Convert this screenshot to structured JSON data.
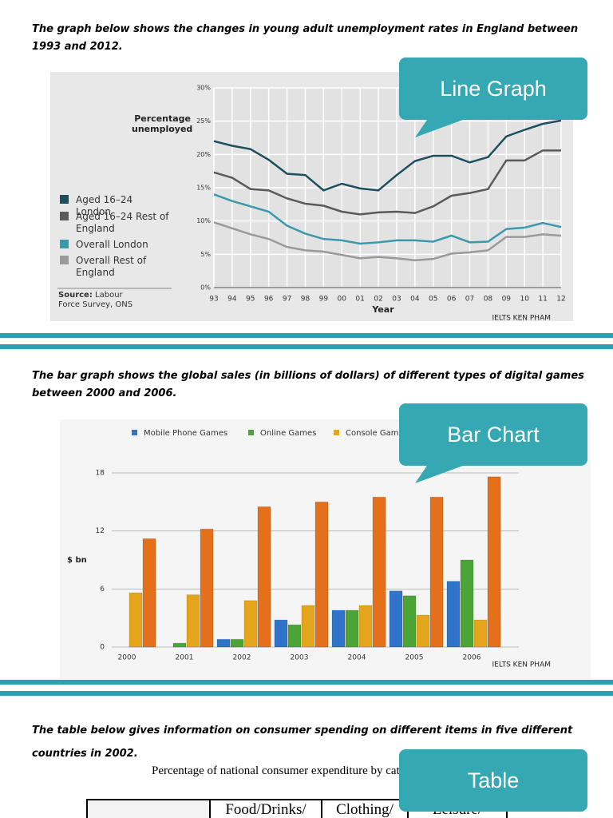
{
  "sections": [
    {
      "text": "The graph below shows the changes in young adult unemployment rates in England between 1993 and 2012."
    },
    {
      "text": "The bar graph shows the global sales (in billions of dollars) of different types of digital games between 2000 and 2006."
    },
    {
      "text": "The table below gives information on consumer spending on different items in five different countries in 2002."
    }
  ],
  "callouts": [
    "Line Graph",
    "Bar Chart",
    "Table"
  ],
  "chart_data": [
    {
      "type": "line",
      "y_label": "Percentage unemployed",
      "x_label": "Year",
      "categories": [
        "93",
        "94",
        "95",
        "96",
        "97",
        "98",
        "99",
        "00",
        "01",
        "02",
        "03",
        "04",
        "05",
        "06",
        "07",
        "08",
        "09",
        "10",
        "11",
        "12"
      ],
      "series": [
        {
          "name": "Aged 16–24 London",
          "color": "#1d4f5e",
          "values": [
            22,
            21.3,
            20.8,
            19.2,
            17.1,
            16.9,
            14.6,
            15.6,
            14.9,
            14.6,
            16.9,
            19,
            19.8,
            19.8,
            18.8,
            19.6,
            22.7,
            23.7,
            24.6,
            25.1
          ]
        },
        {
          "name": "Aged 16–24 Rest of England",
          "color": "#5a5a5a",
          "values": [
            17.3,
            16.5,
            14.8,
            14.6,
            13.4,
            12.6,
            12.3,
            11.4,
            11,
            11.3,
            11.4,
            11.2,
            12.2,
            13.8,
            14.2,
            14.8,
            19.1,
            19.1,
            20.6,
            20.6
          ]
        },
        {
          "name": "Overall London",
          "color": "#3b99ad",
          "values": [
            14,
            13,
            12.2,
            11.4,
            9.3,
            8.1,
            7.3,
            7.1,
            6.6,
            6.8,
            7.1,
            7.1,
            6.9,
            7.8,
            6.8,
            6.9,
            8.8,
            9,
            9.7,
            9.1
          ]
        },
        {
          "name": "Overall Rest of England",
          "color": "#9a9a9a",
          "values": [
            9.8,
            8.9,
            8,
            7.3,
            6.1,
            5.6,
            5.4,
            4.9,
            4.4,
            4.6,
            4.4,
            4.1,
            4.3,
            5.1,
            5.3,
            5.6,
            7.6,
            7.6,
            8,
            7.8
          ]
        }
      ],
      "ylim": [
        0,
        30
      ],
      "yticks": [
        {
          "value": 0,
          "label": "0%"
        },
        {
          "value": 5,
          "label": "5%"
        },
        {
          "value": 10,
          "label": "10%"
        },
        {
          "value": 15,
          "label": "15%"
        },
        {
          "value": 20,
          "label": "20%"
        },
        {
          "value": 25,
          "label": "25%"
        },
        {
          "value": 30,
          "label": "30%"
        }
      ],
      "grid": true,
      "source_label": "Source:",
      "source": "Labour Force Survey, ONS",
      "credit": "IELTS KEN PHAM"
    },
    {
      "type": "bar",
      "y_label": "$ bn",
      "categories": [
        "2000",
        "2001",
        "2002",
        "2003",
        "2004",
        "2005",
        "2006"
      ],
      "series": [
        {
          "name": "Mobile Phone Games",
          "color": "#2f74c8",
          "values": [
            0,
            0,
            0.8,
            2.8,
            3.8,
            5.8,
            6.8
          ]
        },
        {
          "name": "Online Games",
          "color": "#4ca436",
          "values": [
            0,
            0.4,
            0.8,
            2.3,
            3.8,
            5.3,
            9
          ]
        },
        {
          "name": "Console Games",
          "color": "#e5a51c",
          "values": [
            5.6,
            5.4,
            4.8,
            4.3,
            4.3,
            3.3,
            2.8
          ]
        },
        {
          "color": "#e5701c",
          "values": [
            11.2,
            12.2,
            14.5,
            15,
            15.5,
            15.5,
            17.6
          ]
        }
      ],
      "ylim": [
        0,
        18
      ],
      "yticks": [
        0,
        6,
        12,
        18
      ],
      "grid": true,
      "credit": "IELTS KEN PHAM"
    }
  ],
  "table": {
    "caption": "Percentage of national consumer expenditure by category",
    "header": [
      "Food/Drinks/",
      "Clothing/",
      "Leisure/"
    ]
  }
}
